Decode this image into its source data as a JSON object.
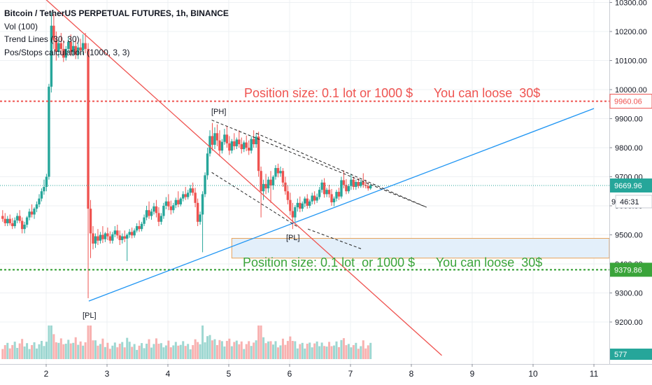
{
  "legend": {
    "title": "Bitcoin / TetherUS PERPETUAL FUTURES, 1h, BINANCE",
    "indicators": [
      "Vol (100)",
      "Trend Lines (30, 30)",
      "Pos/Stops calculation (1000, 3, 3)"
    ]
  },
  "annotations": {
    "ph_label": "[PH]",
    "pl_label_1": "[PL]",
    "pl_label_2": "[PL]",
    "top_position_text": "Position size: 0.1 lot or 1000 $      You can loose  30$",
    "bottom_position_text": "Position size: 0.1 lot  or 1000 $      You can loose  30$"
  },
  "price_tags": {
    "upper": "9960.06",
    "current": "9669.96",
    "countdown": "46:31",
    "lower": "9379.86",
    "volume": "577",
    "partial": "9"
  },
  "colors": {
    "up": "#26a69a",
    "down": "#ef5350",
    "upper_line": "#ef5350",
    "lower_line": "#2e9c2e",
    "trend_blue": "#2196f3",
    "trend_red": "#ef5350",
    "zone_fill": "#e3effa",
    "zone_border": "#e8a25a",
    "current_line": "#26a69a"
  },
  "chart_data": {
    "type": "candlestick",
    "symbol": "BTCUSDT perpetual",
    "timeframe": "1h",
    "exchange": "BINANCE",
    "x_axis": {
      "labels": [
        "2",
        "3",
        "4",
        "5",
        "6",
        "7",
        "8",
        "9",
        "10",
        "11"
      ],
      "range": [
        1.28,
        11.0
      ],
      "unit": "day of month"
    },
    "y_axis": {
      "labels": [
        "9200.00",
        "9300.00",
        "9400.00",
        "9500.00",
        "9600.00",
        "9700.00",
        "9800.00",
        "9900.00",
        "10000.00",
        "10100.00",
        "10200.00",
        "10300.00"
      ],
      "range": [
        9085,
        10315
      ],
      "position": "right"
    },
    "levels": {
      "upper_stop": 9960.06,
      "current": 9669.96,
      "lower_stop": 9379.86
    },
    "zone": {
      "x_start": 5.05,
      "x_end": 11.0,
      "price_top": 9488,
      "price_bottom": 9420
    },
    "trend_lines": [
      {
        "name": "support",
        "x1": 2.7,
        "y1": 9272,
        "x2": 11.0,
        "y2": 9935
      },
      {
        "name": "resistance",
        "x1": 1.97,
        "y1": 10315,
        "x2": 8.5,
        "y2": 9085
      }
    ],
    "pattern_lines": [
      {
        "x1": 4.72,
        "y1": 9895,
        "x2": 8.25,
        "y2": 9595
      },
      {
        "x1": 4.72,
        "y1": 9715,
        "x2": 6.15,
        "y2": 9525
      },
      {
        "x1": 5.45,
        "y1": 9850,
        "x2": 8.25,
        "y2": 9595
      },
      {
        "x1": 6.3,
        "y1": 9520,
        "x2": 7.2,
        "y2": 9450
      }
    ],
    "volume_scale": 3000,
    "candles": [
      {
        "x": 1.285,
        "o": 9565,
        "h": 9585,
        "c": 9555,
        "l": 9545
      },
      {
        "x": 1.325,
        "o": 9555,
        "h": 9575,
        "c": 9540,
        "l": 9530
      },
      {
        "x": 1.365,
        "o": 9540,
        "h": 9565,
        "c": 9555,
        "l": 9530
      },
      {
        "x": 1.405,
        "o": 9555,
        "h": 9570,
        "c": 9540,
        "l": 9532
      },
      {
        "x": 1.445,
        "o": 9540,
        "h": 9558,
        "c": 9530,
        "l": 9520
      },
      {
        "x": 1.485,
        "o": 9530,
        "h": 9560,
        "c": 9550,
        "l": 9522
      },
      {
        "x": 1.525,
        "o": 9550,
        "h": 9575,
        "c": 9565,
        "l": 9540
      },
      {
        "x": 1.565,
        "o": 9565,
        "h": 9585,
        "c": 9548,
        "l": 9540
      },
      {
        "x": 1.605,
        "o": 9548,
        "h": 9560,
        "c": 9520,
        "l": 9505
      },
      {
        "x": 1.645,
        "o": 9520,
        "h": 9545,
        "c": 9535,
        "l": 9505
      },
      {
        "x": 1.685,
        "o": 9535,
        "h": 9565,
        "c": 9560,
        "l": 9525
      },
      {
        "x": 1.725,
        "o": 9560,
        "h": 9590,
        "c": 9580,
        "l": 9550
      },
      {
        "x": 1.765,
        "o": 9580,
        "h": 9605,
        "c": 9570,
        "l": 9560
      },
      {
        "x": 1.805,
        "o": 9570,
        "h": 9595,
        "c": 9590,
        "l": 9555
      },
      {
        "x": 1.845,
        "o": 9590,
        "h": 9615,
        "c": 9605,
        "l": 9578
      },
      {
        "x": 1.885,
        "o": 9605,
        "h": 9640,
        "c": 9625,
        "l": 9595
      },
      {
        "x": 1.925,
        "o": 9625,
        "h": 9660,
        "c": 9650,
        "l": 9615
      },
      {
        "x": 1.965,
        "o": 9650,
        "h": 9690,
        "c": 9665,
        "l": 9638
      },
      {
        "x": 2.005,
        "o": 9665,
        "h": 9710,
        "c": 9700,
        "l": 9650
      },
      {
        "x": 2.045,
        "o": 9700,
        "h": 10020,
        "c": 10010,
        "l": 9690
      },
      {
        "x": 2.085,
        "o": 10010,
        "h": 10265,
        "c": 10220,
        "l": 9990
      },
      {
        "x": 2.125,
        "o": 10220,
        "h": 10260,
        "c": 10170,
        "l": 10140
      },
      {
        "x": 2.165,
        "o": 10170,
        "h": 10200,
        "c": 10130,
        "l": 10100
      },
      {
        "x": 2.205,
        "o": 10130,
        "h": 10175,
        "c": 10160,
        "l": 10110
      },
      {
        "x": 2.245,
        "o": 10160,
        "h": 10195,
        "c": 10140,
        "l": 10120
      },
      {
        "x": 2.285,
        "o": 10140,
        "h": 10170,
        "c": 10110,
        "l": 10095
      },
      {
        "x": 2.325,
        "o": 10110,
        "h": 10150,
        "c": 10140,
        "l": 10100
      },
      {
        "x": 2.365,
        "o": 10140,
        "h": 10180,
        "c": 10165,
        "l": 10125
      },
      {
        "x": 2.405,
        "o": 10165,
        "h": 10190,
        "c": 10130,
        "l": 10115
      },
      {
        "x": 2.445,
        "o": 10130,
        "h": 10165,
        "c": 10150,
        "l": 10115
      },
      {
        "x": 2.485,
        "o": 10150,
        "h": 10175,
        "c": 10120,
        "l": 10105
      },
      {
        "x": 2.525,
        "o": 10120,
        "h": 10160,
        "c": 10145,
        "l": 10105
      },
      {
        "x": 2.565,
        "o": 10145,
        "h": 10175,
        "c": 10135,
        "l": 10120
      },
      {
        "x": 2.605,
        "o": 10135,
        "h": 10190,
        "c": 10160,
        "l": 10120
      },
      {
        "x": 2.645,
        "o": 10160,
        "h": 10195,
        "c": 10140,
        "l": 10125
      },
      {
        "x": 2.69,
        "o": 10140,
        "h": 10160,
        "c": 9590,
        "l": 9282
      },
      {
        "x": 2.73,
        "o": 9590,
        "h": 9620,
        "c": 9505,
        "l": 9420
      },
      {
        "x": 2.77,
        "o": 9505,
        "h": 9530,
        "c": 9470,
        "l": 9450
      },
      {
        "x": 2.81,
        "o": 9470,
        "h": 9505,
        "c": 9495,
        "l": 9455
      },
      {
        "x": 2.85,
        "o": 9495,
        "h": 9520,
        "c": 9480,
        "l": 9465
      },
      {
        "x": 2.89,
        "o": 9480,
        "h": 9510,
        "c": 9500,
        "l": 9470
      },
      {
        "x": 2.93,
        "o": 9500,
        "h": 9530,
        "c": 9485,
        "l": 9472
      },
      {
        "x": 2.97,
        "o": 9485,
        "h": 9510,
        "c": 9505,
        "l": 9475
      },
      {
        "x": 3.01,
        "o": 9505,
        "h": 9525,
        "c": 9495,
        "l": 9482
      },
      {
        "x": 3.05,
        "o": 9495,
        "h": 9512,
        "c": 9480,
        "l": 9470
      },
      {
        "x": 3.09,
        "o": 9480,
        "h": 9510,
        "c": 9502,
        "l": 9470
      },
      {
        "x": 3.13,
        "o": 9502,
        "h": 9530,
        "c": 9515,
        "l": 9492
      },
      {
        "x": 3.17,
        "o": 9515,
        "h": 9535,
        "c": 9498,
        "l": 9487
      },
      {
        "x": 3.21,
        "o": 9498,
        "h": 9515,
        "c": 9482,
        "l": 9465
      },
      {
        "x": 3.25,
        "o": 9482,
        "h": 9505,
        "c": 9495,
        "l": 9470
      },
      {
        "x": 3.29,
        "o": 9495,
        "h": 9515,
        "c": 9487,
        "l": 9475
      },
      {
        "x": 3.33,
        "o": 9487,
        "h": 9505,
        "c": 9500,
        "l": 9410
      },
      {
        "x": 3.37,
        "o": 9500,
        "h": 9520,
        "c": 9510,
        "l": 9490
      },
      {
        "x": 3.41,
        "o": 9510,
        "h": 9525,
        "c": 9498,
        "l": 9488
      },
      {
        "x": 3.45,
        "o": 9498,
        "h": 9522,
        "c": 9515,
        "l": 9490
      },
      {
        "x": 3.49,
        "o": 9515,
        "h": 9540,
        "c": 9530,
        "l": 9508
      },
      {
        "x": 3.53,
        "o": 9530,
        "h": 9550,
        "c": 9520,
        "l": 9510
      },
      {
        "x": 3.57,
        "o": 9520,
        "h": 9545,
        "c": 9538,
        "l": 9512
      },
      {
        "x": 3.61,
        "o": 9538,
        "h": 9570,
        "c": 9560,
        "l": 9530
      },
      {
        "x": 3.65,
        "o": 9560,
        "h": 9600,
        "c": 9585,
        "l": 9550
      },
      {
        "x": 3.69,
        "o": 9585,
        "h": 9615,
        "c": 9565,
        "l": 9555
      },
      {
        "x": 3.73,
        "o": 9565,
        "h": 9590,
        "c": 9580,
        "l": 9552
      },
      {
        "x": 3.77,
        "o": 9580,
        "h": 9610,
        "c": 9598,
        "l": 9570
      },
      {
        "x": 3.81,
        "o": 9598,
        "h": 9620,
        "c": 9575,
        "l": 9560
      },
      {
        "x": 3.85,
        "o": 9575,
        "h": 9595,
        "c": 9545,
        "l": 9530
      },
      {
        "x": 3.89,
        "o": 9545,
        "h": 9575,
        "c": 9565,
        "l": 9535
      },
      {
        "x": 3.93,
        "o": 9565,
        "h": 9610,
        "c": 9600,
        "l": 9555
      },
      {
        "x": 3.97,
        "o": 9600,
        "h": 9630,
        "c": 9615,
        "l": 9588
      },
      {
        "x": 4.01,
        "o": 9615,
        "h": 9640,
        "c": 9598,
        "l": 9585
      },
      {
        "x": 4.05,
        "o": 9598,
        "h": 9618,
        "c": 9585,
        "l": 9570
      },
      {
        "x": 4.09,
        "o": 9585,
        "h": 9610,
        "c": 9602,
        "l": 9575
      },
      {
        "x": 4.13,
        "o": 9602,
        "h": 9628,
        "c": 9620,
        "l": 9592
      },
      {
        "x": 4.17,
        "o": 9620,
        "h": 9650,
        "c": 9605,
        "l": 9595
      },
      {
        "x": 4.21,
        "o": 9605,
        "h": 9630,
        "c": 9625,
        "l": 9598
      },
      {
        "x": 4.25,
        "o": 9625,
        "h": 9650,
        "c": 9640,
        "l": 9615
      },
      {
        "x": 4.29,
        "o": 9640,
        "h": 9665,
        "c": 9630,
        "l": 9620
      },
      {
        "x": 4.33,
        "o": 9630,
        "h": 9655,
        "c": 9645,
        "l": 9622
      },
      {
        "x": 4.37,
        "o": 9645,
        "h": 9672,
        "c": 9660,
        "l": 9635
      },
      {
        "x": 4.41,
        "o": 9660,
        "h": 9680,
        "c": 9645,
        "l": 9635
      },
      {
        "x": 4.45,
        "o": 9645,
        "h": 9662,
        "c": 9610,
        "l": 9595
      },
      {
        "x": 4.49,
        "o": 9610,
        "h": 9625,
        "c": 9545,
        "l": 9530
      },
      {
        "x": 4.53,
        "o": 9545,
        "h": 9580,
        "c": 9570,
        "l": 9535
      },
      {
        "x": 4.57,
        "o": 9570,
        "h": 9650,
        "c": 9640,
        "l": 9440
      },
      {
        "x": 4.61,
        "o": 9640,
        "h": 9715,
        "c": 9705,
        "l": 9630
      },
      {
        "x": 4.65,
        "o": 9705,
        "h": 9800,
        "c": 9780,
        "l": 9690
      },
      {
        "x": 4.69,
        "o": 9780,
        "h": 9860,
        "c": 9840,
        "l": 9770
      },
      {
        "x": 4.73,
        "o": 9840,
        "h": 9885,
        "c": 9810,
        "l": 9790
      },
      {
        "x": 4.77,
        "o": 9810,
        "h": 9870,
        "c": 9850,
        "l": 9795
      },
      {
        "x": 4.81,
        "o": 9850,
        "h": 9880,
        "c": 9825,
        "l": 9805
      },
      {
        "x": 4.85,
        "o": 9825,
        "h": 9860,
        "c": 9790,
        "l": 9770
      },
      {
        "x": 4.89,
        "o": 9790,
        "h": 9830,
        "c": 9820,
        "l": 9780
      },
      {
        "x": 4.93,
        "o": 9820,
        "h": 9865,
        "c": 9845,
        "l": 9810
      },
      {
        "x": 4.97,
        "o": 9845,
        "h": 9875,
        "c": 9815,
        "l": 9800
      },
      {
        "x": 5.01,
        "o": 9815,
        "h": 9840,
        "c": 9790,
        "l": 9775
      },
      {
        "x": 5.05,
        "o": 9790,
        "h": 9830,
        "c": 9822,
        "l": 9780
      },
      {
        "x": 5.09,
        "o": 9822,
        "h": 9850,
        "c": 9805,
        "l": 9792
      },
      {
        "x": 5.13,
        "o": 9805,
        "h": 9835,
        "c": 9828,
        "l": 9795
      },
      {
        "x": 5.17,
        "o": 9828,
        "h": 9860,
        "c": 9812,
        "l": 9800
      },
      {
        "x": 5.21,
        "o": 9812,
        "h": 9835,
        "c": 9795,
        "l": 9780
      },
      {
        "x": 5.25,
        "o": 9795,
        "h": 9825,
        "c": 9818,
        "l": 9785
      },
      {
        "x": 5.29,
        "o": 9818,
        "h": 9842,
        "c": 9800,
        "l": 9788
      },
      {
        "x": 5.33,
        "o": 9800,
        "h": 9825,
        "c": 9790,
        "l": 9775
      },
      {
        "x": 5.37,
        "o": 9790,
        "h": 9840,
        "c": 9830,
        "l": 9780
      },
      {
        "x": 5.41,
        "o": 9830,
        "h": 9860,
        "c": 9812,
        "l": 9800
      },
      {
        "x": 5.45,
        "o": 9812,
        "h": 9850,
        "c": 9838,
        "l": 9800
      },
      {
        "x": 5.49,
        "o": 9838,
        "h": 9855,
        "c": 9720,
        "l": 9700
      },
      {
        "x": 5.53,
        "o": 9720,
        "h": 9735,
        "c": 9650,
        "l": 9560
      },
      {
        "x": 5.57,
        "o": 9650,
        "h": 9690,
        "c": 9675,
        "l": 9620
      },
      {
        "x": 5.61,
        "o": 9675,
        "h": 9710,
        "c": 9660,
        "l": 9640
      },
      {
        "x": 5.65,
        "o": 9660,
        "h": 9700,
        "c": 9690,
        "l": 9645
      },
      {
        "x": 5.69,
        "o": 9690,
        "h": 9720,
        "c": 9670,
        "l": 9610
      },
      {
        "x": 5.73,
        "o": 9670,
        "h": 9705,
        "c": 9700,
        "l": 9655
      },
      {
        "x": 5.77,
        "o": 9700,
        "h": 9740,
        "c": 9730,
        "l": 9690
      },
      {
        "x": 5.81,
        "o": 9730,
        "h": 9745,
        "c": 9712,
        "l": 9698
      },
      {
        "x": 5.85,
        "o": 9712,
        "h": 9735,
        "c": 9720,
        "l": 9700
      },
      {
        "x": 5.89,
        "o": 9720,
        "h": 9730,
        "c": 9680,
        "l": 9665
      },
      {
        "x": 5.93,
        "o": 9680,
        "h": 9700,
        "c": 9650,
        "l": 9638
      },
      {
        "x": 5.97,
        "o": 9650,
        "h": 9672,
        "c": 9620,
        "l": 9605
      },
      {
        "x": 6.01,
        "o": 9620,
        "h": 9645,
        "c": 9582,
        "l": 9568
      },
      {
        "x": 6.05,
        "o": 9582,
        "h": 9610,
        "c": 9560,
        "l": 9520
      },
      {
        "x": 6.09,
        "o": 9560,
        "h": 9602,
        "c": 9595,
        "l": 9545
      },
      {
        "x": 6.13,
        "o": 9595,
        "h": 9625,
        "c": 9610,
        "l": 9580
      },
      {
        "x": 6.17,
        "o": 9610,
        "h": 9632,
        "c": 9590,
        "l": 9578
      },
      {
        "x": 6.21,
        "o": 9590,
        "h": 9615,
        "c": 9608,
        "l": 9580
      },
      {
        "x": 6.25,
        "o": 9608,
        "h": 9632,
        "c": 9625,
        "l": 9595
      },
      {
        "x": 6.29,
        "o": 9625,
        "h": 9640,
        "c": 9600,
        "l": 9590
      },
      {
        "x": 6.33,
        "o": 9600,
        "h": 9622,
        "c": 9615,
        "l": 9592
      },
      {
        "x": 6.37,
        "o": 9615,
        "h": 9645,
        "c": 9635,
        "l": 9605
      },
      {
        "x": 6.41,
        "o": 9635,
        "h": 9650,
        "c": 9618,
        "l": 9605
      },
      {
        "x": 6.45,
        "o": 9618,
        "h": 9642,
        "c": 9630,
        "l": 9610
      },
      {
        "x": 6.49,
        "o": 9630,
        "h": 9665,
        "c": 9655,
        "l": 9622
      },
      {
        "x": 6.53,
        "o": 9655,
        "h": 9690,
        "c": 9680,
        "l": 9645
      },
      {
        "x": 6.57,
        "o": 9680,
        "h": 9695,
        "c": 9640,
        "l": 9628
      },
      {
        "x": 6.61,
        "o": 9640,
        "h": 9662,
        "c": 9655,
        "l": 9630
      },
      {
        "x": 6.65,
        "o": 9655,
        "h": 9672,
        "c": 9640,
        "l": 9628
      },
      {
        "x": 6.69,
        "o": 9640,
        "h": 9658,
        "c": 9612,
        "l": 9600
      },
      {
        "x": 6.73,
        "o": 9612,
        "h": 9632,
        "c": 9625,
        "l": 9598
      },
      {
        "x": 6.77,
        "o": 9625,
        "h": 9655,
        "c": 9648,
        "l": 9615
      },
      {
        "x": 6.81,
        "o": 9648,
        "h": 9662,
        "c": 9632,
        "l": 9620
      },
      {
        "x": 6.85,
        "o": 9632,
        "h": 9700,
        "c": 9688,
        "l": 9625
      },
      {
        "x": 6.89,
        "o": 9688,
        "h": 9722,
        "c": 9672,
        "l": 9660
      },
      {
        "x": 6.93,
        "o": 9672,
        "h": 9692,
        "c": 9650,
        "l": 9640
      },
      {
        "x": 6.97,
        "o": 9650,
        "h": 9675,
        "c": 9668,
        "l": 9642
      },
      {
        "x": 7.01,
        "o": 9668,
        "h": 9710,
        "c": 9690,
        "l": 9655
      },
      {
        "x": 7.05,
        "o": 9690,
        "h": 9700,
        "c": 9665,
        "l": 9655
      },
      {
        "x": 7.09,
        "o": 9665,
        "h": 9690,
        "c": 9682,
        "l": 9655
      },
      {
        "x": 7.13,
        "o": 9682,
        "h": 9695,
        "c": 9668,
        "l": 9660
      },
      {
        "x": 7.17,
        "o": 9668,
        "h": 9690,
        "c": 9682,
        "l": 9662
      },
      {
        "x": 7.21,
        "o": 9682,
        "h": 9712,
        "c": 9672,
        "l": 9662
      },
      {
        "x": 7.25,
        "o": 9672,
        "h": 9690,
        "c": 9668,
        "l": 9660
      },
      {
        "x": 7.29,
        "o": 9668,
        "h": 9680,
        "c": 9660,
        "l": 9652
      },
      {
        "x": 7.33,
        "o": 9660,
        "h": 9675,
        "c": 9670,
        "l": 9655
      }
    ]
  }
}
